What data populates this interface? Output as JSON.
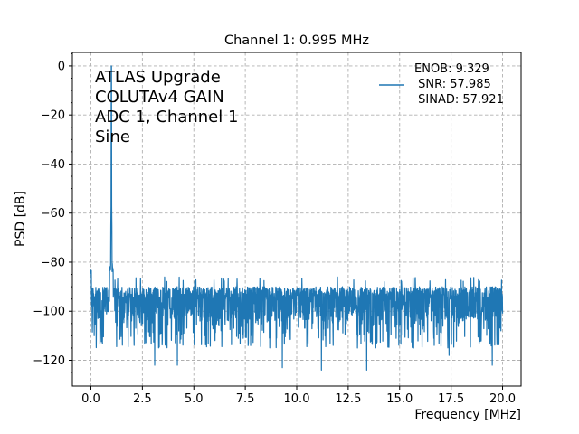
{
  "chart_data": {
    "type": "line",
    "title": "Channel 1: 0.995 MHz",
    "xlabel": "Frequency [MHz]",
    "ylabel": "PSD [dB]",
    "xlim": [
      -0.9,
      20.9
    ],
    "ylim": [
      -130.5,
      5.5
    ],
    "x_ticks": [
      0.0,
      2.5,
      5.0,
      7.5,
      10.0,
      12.5,
      15.0,
      17.5,
      20.0
    ],
    "x_tick_labels": [
      "0.0",
      "2.5",
      "5.0",
      "7.5",
      "10.0",
      "12.5",
      "15.0",
      "17.5",
      "20.0"
    ],
    "y_ticks": [
      0,
      -20,
      -40,
      -60,
      -80,
      -100,
      -120
    ],
    "y_tick_labels": [
      "0",
      "−20",
      "−40",
      "−60",
      "−80",
      "−100",
      "−120"
    ],
    "grid": true,
    "annotation_lines": [
      "ATLAS Upgrade",
      "COLUTAv4 GAIN",
      "ADC 1, Channel 1",
      "Sine"
    ],
    "legend": {
      "location": "top-right",
      "lines": [
        "ENOB: 9.329",
        " SNR: 57.985",
        " SINAD: 57.921"
      ]
    },
    "series": [
      {
        "color": "#1f77b4",
        "signal_frequency": 0.995,
        "peak": 0,
        "noise_floor_median": -98,
        "noise_floor_max": -86,
        "noise_floor_min": -124,
        "x_range": [
          0.0,
          20.0
        ],
        "dips": [
          {
            "x": 3.1,
            "y": -122
          },
          {
            "x": 4.2,
            "y": -122
          },
          {
            "x": 9.3,
            "y": -123
          },
          {
            "x": 11.2,
            "y": -124
          },
          {
            "x": 13.4,
            "y": -124
          },
          {
            "x": 17.4,
            "y": -118
          },
          {
            "x": 19.5,
            "y": -122
          }
        ]
      }
    ]
  }
}
